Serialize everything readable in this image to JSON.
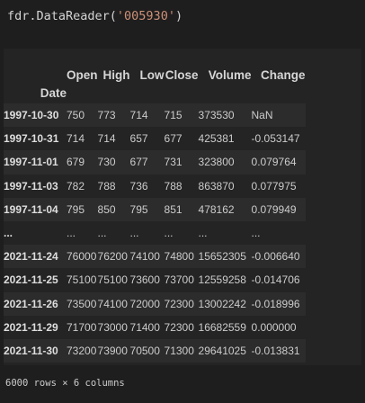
{
  "cell": {
    "code_prefix": "fdr.DataReader(",
    "code_string": "'005930'",
    "code_suffix": ")"
  },
  "table": {
    "columns": [
      "Open",
      "High",
      "Low",
      "Close",
      "Volume",
      "Change"
    ],
    "index_name": "Date",
    "rows": [
      {
        "date": "1997-10-30",
        "open": "750",
        "high": "773",
        "low": "714",
        "close": "715",
        "volume": "373530",
        "change": "NaN"
      },
      {
        "date": "1997-10-31",
        "open": "714",
        "high": "714",
        "low": "657",
        "close": "677",
        "volume": "425381",
        "change": "-0.053147"
      },
      {
        "date": "1997-11-01",
        "open": "679",
        "high": "730",
        "low": "677",
        "close": "731",
        "volume": "323800",
        "change": "0.079764"
      },
      {
        "date": "1997-11-03",
        "open": "782",
        "high": "788",
        "low": "736",
        "close": "788",
        "volume": "863870",
        "change": "0.077975"
      },
      {
        "date": "1997-11-04",
        "open": "795",
        "high": "850",
        "low": "795",
        "close": "851",
        "volume": "478162",
        "change": "0.079949"
      },
      {
        "date": "...",
        "open": "...",
        "high": "...",
        "low": "...",
        "close": "...",
        "volume": "...",
        "change": "..."
      },
      {
        "date": "2021-11-24",
        "open": "76000",
        "high": "76200",
        "low": "74100",
        "close": "74800",
        "volume": "15652305",
        "change": "-0.006640"
      },
      {
        "date": "2021-11-25",
        "open": "75100",
        "high": "75100",
        "low": "73600",
        "close": "73700",
        "volume": "12559258",
        "change": "-0.014706"
      },
      {
        "date": "2021-11-26",
        "open": "73500",
        "high": "74100",
        "low": "72000",
        "close": "72300",
        "volume": "13002242",
        "change": "-0.018996"
      },
      {
        "date": "2021-11-29",
        "open": "71700",
        "high": "73000",
        "low": "71400",
        "close": "72300",
        "volume": "16682559",
        "change": "0.000000"
      },
      {
        "date": "2021-11-30",
        "open": "73200",
        "high": "73900",
        "low": "70500",
        "close": "71300",
        "volume": "29641025",
        "change": "-0.013831"
      }
    ]
  },
  "footer": "6000 rows × 6 columns"
}
